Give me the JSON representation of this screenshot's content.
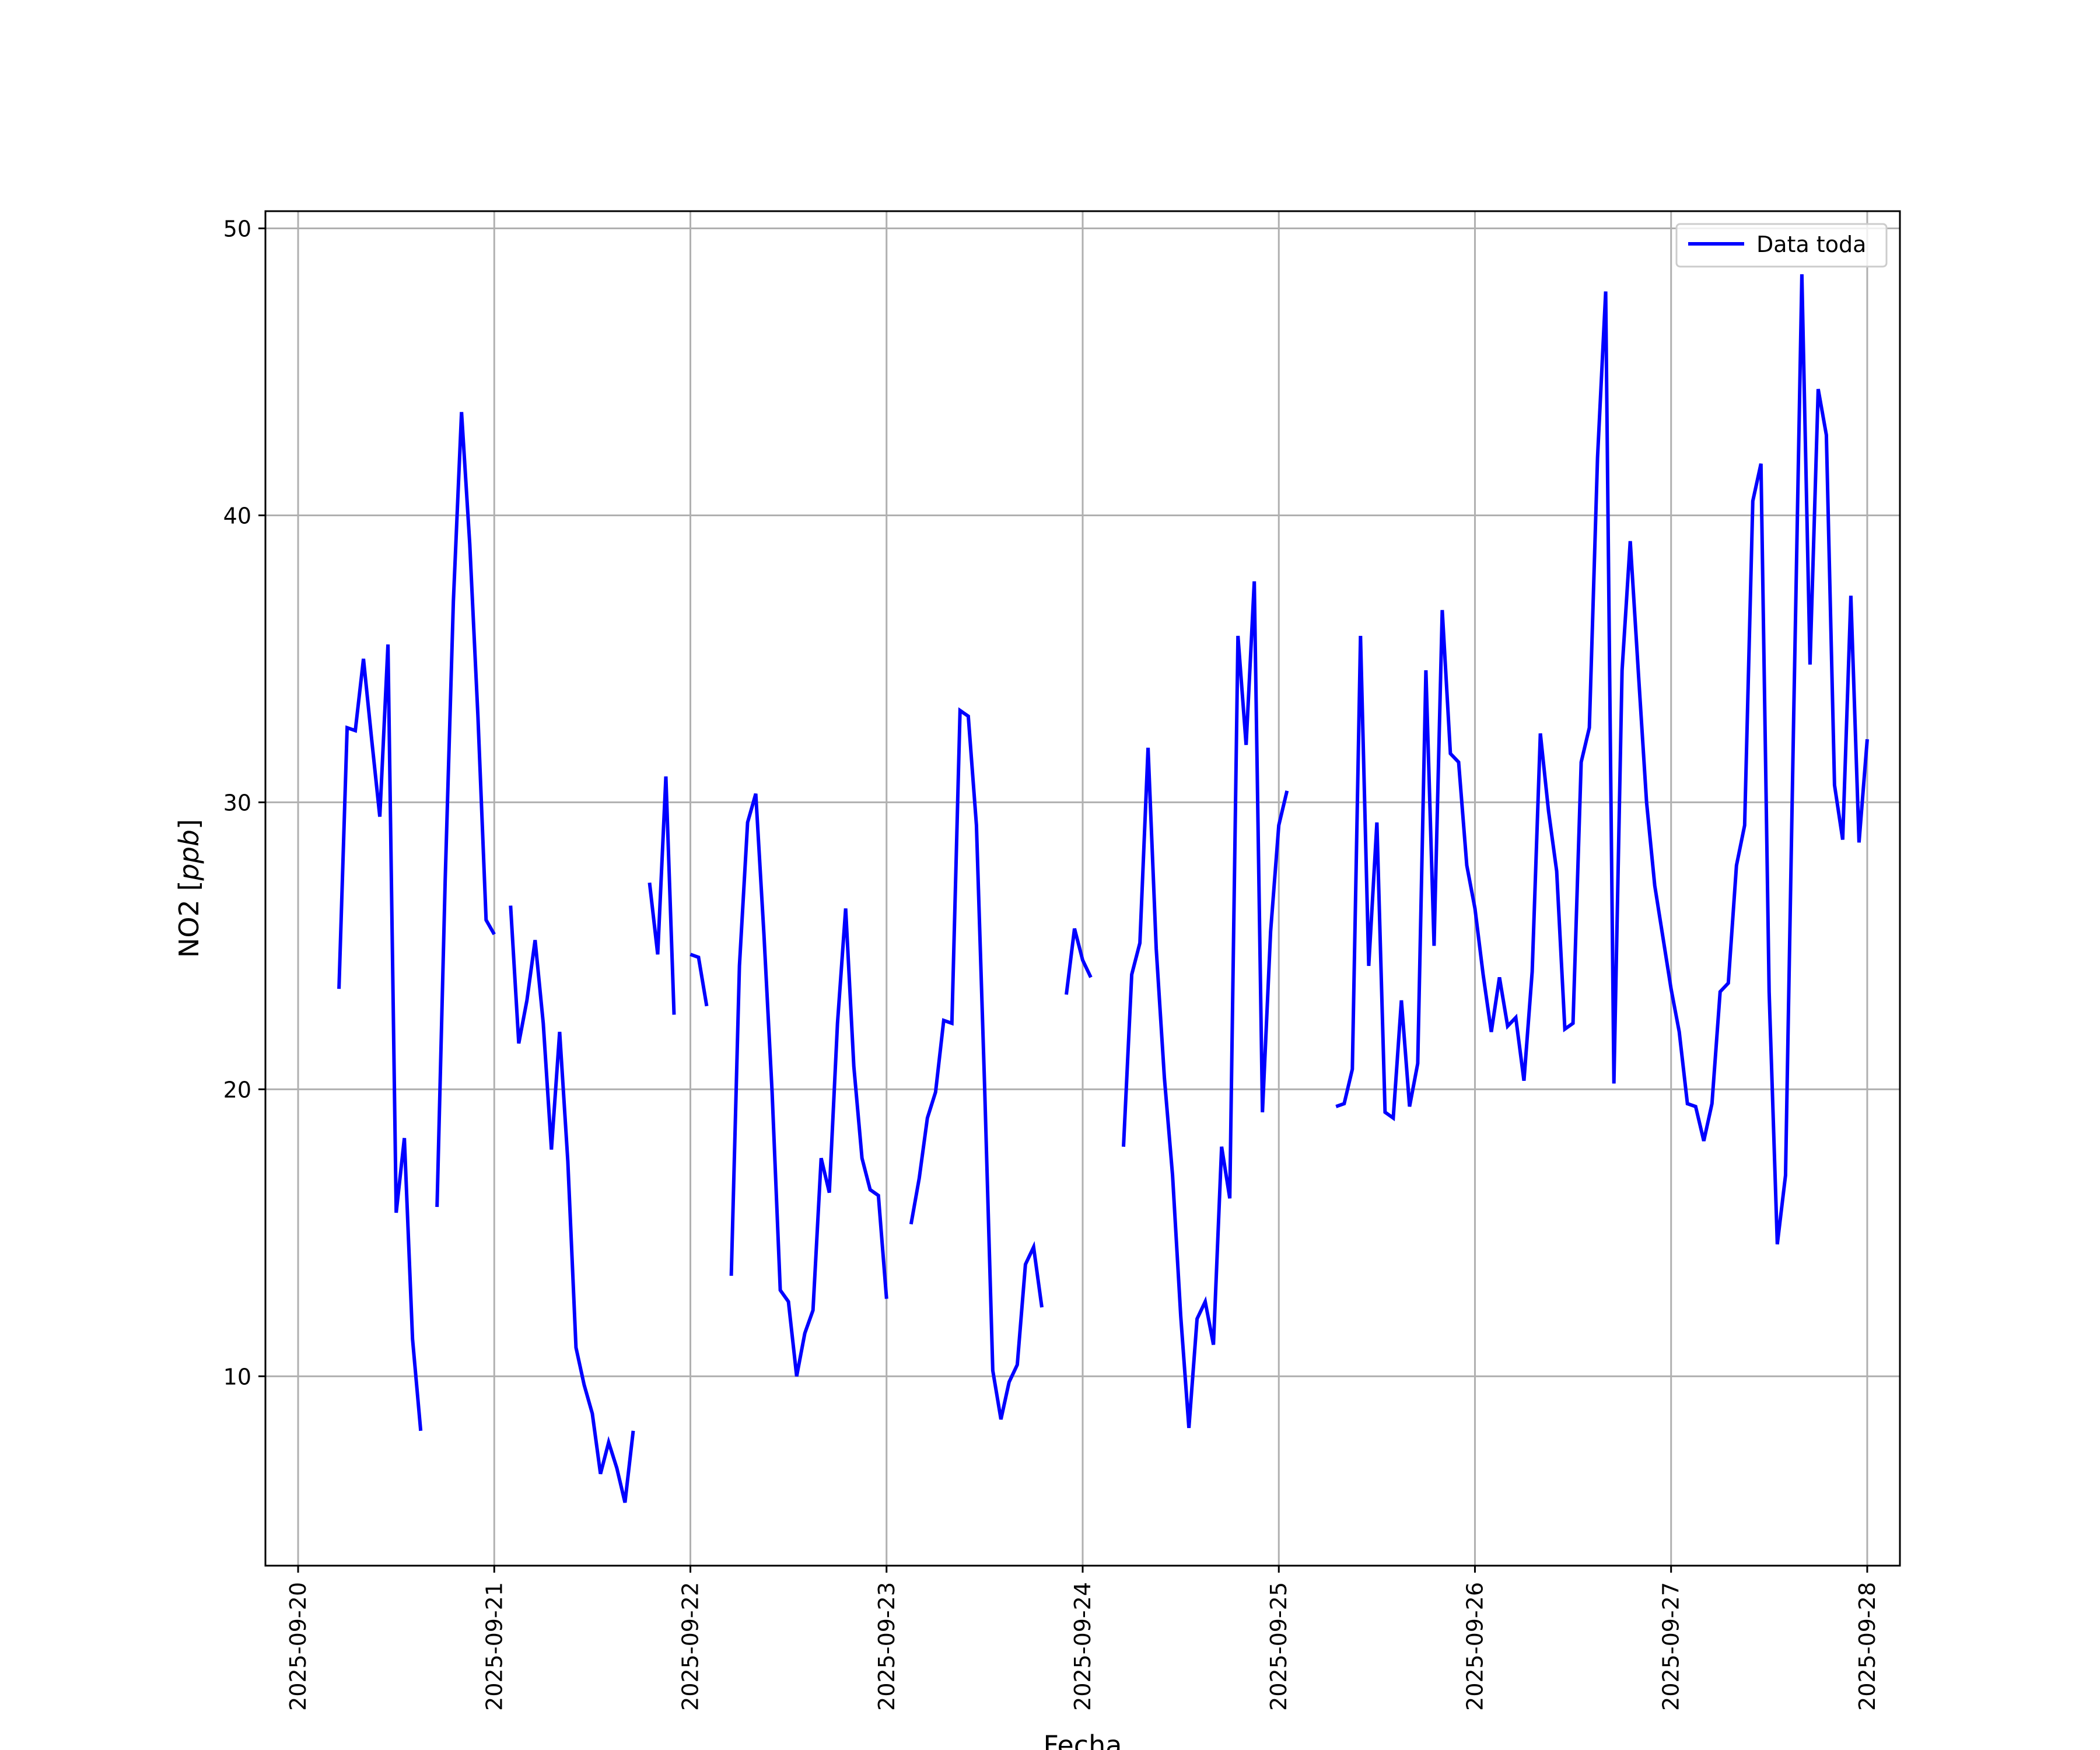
{
  "chart_data": {
    "type": "line",
    "xlabel": "Fecha",
    "ylabel": "NO2 [ppb]",
    "ylabel_main": "NO2 [",
    "ylabel_unit": "ppb",
    "ylabel_close": "]",
    "x_ticks": [
      "2025-09-20",
      "2025-09-21",
      "2025-09-22",
      "2025-09-23",
      "2025-09-24",
      "2025-09-25",
      "2025-09-26",
      "2025-09-27",
      "2025-09-28"
    ],
    "y_ticks": [
      10,
      20,
      30,
      40,
      50
    ],
    "xlim": [
      "2025-09-19 20:00",
      "2025-09-28 04:00"
    ],
    "ylim": [
      3.4,
      50.6
    ],
    "grid": true,
    "legend_position": "top-right",
    "series": [
      {
        "name": "Data toda",
        "color": "#0000ff",
        "points": [
          [
            "2025-09-20 05:00",
            23.5
          ],
          [
            "2025-09-20 06:00",
            32.6
          ],
          [
            "2025-09-20 07:00",
            32.5
          ],
          [
            "2025-09-20 08:00",
            35.0
          ],
          [
            "2025-09-20 09:00",
            32.2
          ],
          [
            "2025-09-20 10:00",
            29.5
          ],
          [
            "2025-09-20 11:00",
            35.5
          ],
          [
            "2025-09-20 12:00",
            15.7
          ],
          [
            "2025-09-20 13:00",
            18.3
          ],
          [
            "2025-09-20 14:00",
            11.3
          ],
          [
            "2025-09-20 15:00",
            8.1
          ],
          [
            "2025-09-20 16:00",
            null
          ],
          [
            "2025-09-20 17:00",
            15.9
          ],
          [
            "2025-09-20 18:00",
            27.3
          ],
          [
            "2025-09-20 19:00",
            37.0
          ],
          [
            "2025-09-20 20:00",
            43.6
          ],
          [
            "2025-09-20 21:00",
            39.0
          ],
          [
            "2025-09-20 22:00",
            33.0
          ],
          [
            "2025-09-20 23:00",
            25.9
          ],
          [
            "2025-09-21 00:00",
            25.4
          ],
          [
            "2025-09-21 01:00",
            null
          ],
          [
            "2025-09-21 02:00",
            26.4
          ],
          [
            "2025-09-21 03:00",
            21.6
          ],
          [
            "2025-09-21 04:00",
            23.1
          ],
          [
            "2025-09-21 05:00",
            25.2
          ],
          [
            "2025-09-21 06:00",
            22.3
          ],
          [
            "2025-09-21 07:00",
            17.9
          ],
          [
            "2025-09-21 08:00",
            22.0
          ],
          [
            "2025-09-21 09:00",
            17.5
          ],
          [
            "2025-09-21 10:00",
            11.0
          ],
          [
            "2025-09-21 11:00",
            9.7
          ],
          [
            "2025-09-21 12:00",
            8.7
          ],
          [
            "2025-09-21 13:00",
            6.6
          ],
          [
            "2025-09-21 14:00",
            7.7
          ],
          [
            "2025-09-21 15:00",
            6.8
          ],
          [
            "2025-09-21 16:00",
            5.6
          ],
          [
            "2025-09-21 17:00",
            8.1
          ],
          [
            "2025-09-21 18:00",
            null
          ],
          [
            "2025-09-21 19:00",
            27.2
          ],
          [
            "2025-09-21 20:00",
            24.7
          ],
          [
            "2025-09-21 21:00",
            30.9
          ],
          [
            "2025-09-21 22:00",
            22.6
          ],
          [
            "2025-09-21 23:00",
            null
          ],
          [
            "2025-09-22 00:00",
            24.7
          ],
          [
            "2025-09-22 01:00",
            24.6
          ],
          [
            "2025-09-22 02:00",
            22.9
          ],
          [
            "2025-09-22 03:00",
            null
          ],
          [
            "2025-09-22 05:00",
            13.5
          ],
          [
            "2025-09-22 06:00",
            24.3
          ],
          [
            "2025-09-22 07:00",
            29.3
          ],
          [
            "2025-09-22 08:00",
            30.3
          ],
          [
            "2025-09-22 09:00",
            25.4
          ],
          [
            "2025-09-22 10:00",
            19.9
          ],
          [
            "2025-09-22 11:00",
            13.0
          ],
          [
            "2025-09-22 12:00",
            12.6
          ],
          [
            "2025-09-22 13:00",
            10.0
          ],
          [
            "2025-09-22 14:00",
            11.5
          ],
          [
            "2025-09-22 15:00",
            12.3
          ],
          [
            "2025-09-22 16:00",
            17.6
          ],
          [
            "2025-09-22 17:00",
            16.4
          ],
          [
            "2025-09-22 18:00",
            22.3
          ],
          [
            "2025-09-22 19:00",
            26.3
          ],
          [
            "2025-09-22 20:00",
            20.8
          ],
          [
            "2025-09-22 21:00",
            17.6
          ],
          [
            "2025-09-22 22:00",
            16.5
          ],
          [
            "2025-09-22 23:00",
            16.3
          ],
          [
            "2025-09-23 00:00",
            12.7
          ],
          [
            "2025-09-23 01:00",
            null
          ],
          [
            "2025-09-23 03:00",
            15.3
          ],
          [
            "2025-09-23 04:00",
            16.9
          ],
          [
            "2025-09-23 05:00",
            19.0
          ],
          [
            "2025-09-23 06:00",
            19.9
          ],
          [
            "2025-09-23 07:00",
            22.4
          ],
          [
            "2025-09-23 08:00",
            22.3
          ],
          [
            "2025-09-23 09:00",
            33.2
          ],
          [
            "2025-09-23 10:00",
            33.0
          ],
          [
            "2025-09-23 11:00",
            29.2
          ],
          [
            "2025-09-23 12:00",
            20.1
          ],
          [
            "2025-09-23 13:00",
            10.2
          ],
          [
            "2025-09-23 14:00",
            8.5
          ],
          [
            "2025-09-23 15:00",
            9.8
          ],
          [
            "2025-09-23 16:00",
            10.4
          ],
          [
            "2025-09-23 17:00",
            13.9
          ],
          [
            "2025-09-23 18:00",
            14.5
          ],
          [
            "2025-09-23 19:00",
            12.4
          ],
          [
            "2025-09-23 20:00",
            null
          ],
          [
            "2025-09-23 22:00",
            23.3
          ],
          [
            "2025-09-23 23:00",
            25.6
          ],
          [
            "2025-09-24 00:00",
            24.5
          ],
          [
            "2025-09-24 01:00",
            23.9
          ],
          [
            "2025-09-24 02:00",
            null
          ],
          [
            "2025-09-24 05:00",
            18.0
          ],
          [
            "2025-09-24 06:00",
            24.0
          ],
          [
            "2025-09-24 07:00",
            25.1
          ],
          [
            "2025-09-24 08:00",
            31.9
          ],
          [
            "2025-09-24 09:00",
            24.9
          ],
          [
            "2025-09-24 10:00",
            20.4
          ],
          [
            "2025-09-24 11:00",
            17.0
          ],
          [
            "2025-09-24 12:00",
            12.1
          ],
          [
            "2025-09-24 13:00",
            8.2
          ],
          [
            "2025-09-24 14:00",
            12.0
          ],
          [
            "2025-09-24 15:00",
            12.6
          ],
          [
            "2025-09-24 16:00",
            11.1
          ],
          [
            "2025-09-24 17:00",
            18.0
          ],
          [
            "2025-09-24 18:00",
            16.2
          ],
          [
            "2025-09-24 19:00",
            35.8
          ],
          [
            "2025-09-24 20:00",
            32.0
          ],
          [
            "2025-09-24 21:00",
            37.7
          ],
          [
            "2025-09-24 22:00",
            19.2
          ],
          [
            "2025-09-24 23:00",
            25.5
          ],
          [
            "2025-09-25 00:00",
            29.2
          ],
          [
            "2025-09-25 01:00",
            30.4
          ],
          [
            "2025-09-25 02:00",
            null
          ],
          [
            "2025-09-25 07:00",
            19.4
          ],
          [
            "2025-09-25 08:00",
            19.5
          ],
          [
            "2025-09-25 09:00",
            20.7
          ],
          [
            "2025-09-25 10:00",
            35.8
          ],
          [
            "2025-09-25 11:00",
            24.3
          ],
          [
            "2025-09-25 12:00",
            29.3
          ],
          [
            "2025-09-25 13:00",
            19.2
          ],
          [
            "2025-09-25 14:00",
            19.0
          ],
          [
            "2025-09-25 15:00",
            23.1
          ],
          [
            "2025-09-25 16:00",
            19.4
          ],
          [
            "2025-09-25 17:00",
            20.9
          ],
          [
            "2025-09-25 18:00",
            34.6
          ],
          [
            "2025-09-25 19:00",
            25.0
          ],
          [
            "2025-09-25 20:00",
            36.7
          ],
          [
            "2025-09-25 21:00",
            31.7
          ],
          [
            "2025-09-25 22:00",
            31.4
          ],
          [
            "2025-09-25 23:00",
            27.8
          ],
          [
            "2025-09-26 00:00",
            26.3
          ],
          [
            "2025-09-26 01:00",
            24.0
          ],
          [
            "2025-09-26 02:00",
            22.0
          ],
          [
            "2025-09-26 03:00",
            23.9
          ],
          [
            "2025-09-26 04:00",
            22.2
          ],
          [
            "2025-09-26 05:00",
            22.5
          ],
          [
            "2025-09-26 06:00",
            20.3
          ],
          [
            "2025-09-26 07:00",
            24.1
          ],
          [
            "2025-09-26 08:00",
            32.4
          ],
          [
            "2025-09-26 09:00",
            29.7
          ],
          [
            "2025-09-26 10:00",
            27.6
          ],
          [
            "2025-09-26 11:00",
            22.1
          ],
          [
            "2025-09-26 12:00",
            22.3
          ],
          [
            "2025-09-26 13:00",
            31.4
          ],
          [
            "2025-09-26 14:00",
            32.6
          ],
          [
            "2025-09-26 15:00",
            42.0
          ],
          [
            "2025-09-26 16:00",
            47.8
          ],
          [
            "2025-09-26 17:00",
            20.2
          ],
          [
            "2025-09-26 18:00",
            34.6
          ],
          [
            "2025-09-26 19:00",
            39.1
          ],
          [
            "2025-09-26 20:00",
            34.5
          ],
          [
            "2025-09-26 21:00",
            30.0
          ],
          [
            "2025-09-26 22:00",
            27.1
          ],
          [
            "2025-09-26 23:00",
            25.3
          ],
          [
            "2025-09-27 00:00",
            23.5
          ],
          [
            "2025-09-27 01:00",
            22.0
          ],
          [
            "2025-09-27 02:00",
            19.5
          ],
          [
            "2025-09-27 03:00",
            19.4
          ],
          [
            "2025-09-27 04:00",
            18.2
          ],
          [
            "2025-09-27 05:00",
            19.5
          ],
          [
            "2025-09-27 06:00",
            23.4
          ],
          [
            "2025-09-27 07:00",
            23.7
          ],
          [
            "2025-09-27 08:00",
            27.8
          ],
          [
            "2025-09-27 09:00",
            29.2
          ],
          [
            "2025-09-27 10:00",
            40.5
          ],
          [
            "2025-09-27 11:00",
            41.8
          ],
          [
            "2025-09-27 12:00",
            23.4
          ],
          [
            "2025-09-27 13:00",
            14.6
          ],
          [
            "2025-09-27 14:00",
            17.0
          ],
          [
            "2025-09-27 15:00",
            33.0
          ],
          [
            "2025-09-27 16:00",
            48.4
          ],
          [
            "2025-09-27 17:00",
            34.8
          ],
          [
            "2025-09-27 18:00",
            44.4
          ],
          [
            "2025-09-27 19:00",
            42.8
          ],
          [
            "2025-09-27 20:00",
            30.6
          ],
          [
            "2025-09-27 21:00",
            28.7
          ],
          [
            "2025-09-27 22:00",
            37.2
          ],
          [
            "2025-09-27 23:00",
            28.6
          ],
          [
            "2025-09-28 00:00",
            32.2
          ]
        ]
      }
    ]
  }
}
